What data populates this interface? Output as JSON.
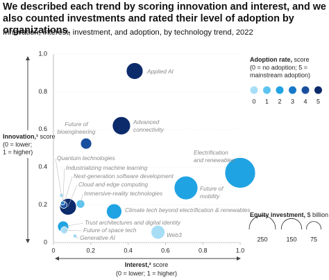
{
  "chart_data": {
    "type": "bubble",
    "title": "We described each trend by scoring innovation and interest, and we also counted investments and rated their level of adoption by organizations.",
    "subtitle": "Innovation, interest, investment, and adoption, by technology trend, 2022",
    "y_label": {
      "title": "Innovation,¹",
      "unit": "score",
      "note_lines": [
        "(0 = lower;",
        "1 = higher)"
      ]
    },
    "x_label": {
      "title": "Interest,²",
      "unit": "score",
      "note": "(0 = lower; 1 = higher)"
    },
    "xlim": [
      0,
      1
    ],
    "ylim": [
      0,
      1
    ],
    "xticks": [
      0,
      0.2,
      0.4,
      0.6,
      0.8,
      {
        "value": 1,
        "label": "1.0"
      }
    ],
    "yticks": [
      0,
      0.2,
      0.4,
      0.6,
      0.8,
      {
        "value": 1,
        "label": "1.0"
      }
    ],
    "points": [
      {
        "label": [
          "Applied AI"
        ],
        "x": 0.435,
        "y": 0.91,
        "investment": 100,
        "adoption": 5
      },
      {
        "label": [
          "Advanced",
          "connectivity"
        ],
        "x": 0.364,
        "y": 0.62,
        "investment": 117,
        "adoption": 5
      },
      {
        "label": [
          "Future of",
          "bioengineering"
        ],
        "x": 0.175,
        "y": 0.525,
        "investment": 44,
        "adoption": 4
      },
      {
        "label": [
          "Electrification",
          "and renewables"
        ],
        "x": 1.0,
        "y": 0.37,
        "investment": 336,
        "adoption": 2
      },
      {
        "label": [
          "Future of",
          "mobility"
        ],
        "x": 0.71,
        "y": 0.29,
        "investment": 200,
        "adoption": 2
      },
      {
        "label": [
          "Climate tech beyond electrification & renewables"
        ],
        "x": 0.325,
        "y": 0.165,
        "investment": 84,
        "adoption": 2
      },
      {
        "label": [
          "Web3"
        ],
        "x": 0.56,
        "y": 0.055,
        "investment": 69,
        "adoption": 0
      },
      {
        "label": [
          "Quantum technologies"
        ],
        "x": 0.043,
        "y": 0.25,
        "investment": 6,
        "adoption": 0
      },
      {
        "label": [
          "Industrializing machine learning"
        ],
        "x": 0.05,
        "y": 0.21,
        "investment": 6,
        "adoption": 3
      },
      {
        "label": [
          "Next-generation software development"
        ],
        "x": 0.055,
        "y": 0.2,
        "investment": 17,
        "adoption": 4
      },
      {
        "label": [
          "Cloud and edge computing"
        ],
        "x": 0.078,
        "y": 0.19,
        "investment": 100,
        "adoption": 5
      },
      {
        "label": [
          "Immersive-reality technologies"
        ],
        "x": 0.145,
        "y": 0.205,
        "investment": 25,
        "adoption": 1
      },
      {
        "label": [
          "Trust architectures and digital identity"
        ],
        "x": 0.052,
        "y": 0.085,
        "investment": 44,
        "adoption": 2
      },
      {
        "label": [
          "Future of space tech"
        ],
        "x": 0.058,
        "y": 0.065,
        "investment": 17,
        "adoption": 0
      },
      {
        "label": [
          "Generative AI"
        ],
        "x": 0.115,
        "y": 0.035,
        "investment": 6,
        "adoption": 0
      }
    ],
    "adoption_legend": {
      "title": "Adoption rate,",
      "unit": "score",
      "note_lines": [
        "(0 = no adoption; 5 =",
        "mainstream adoption)"
      ],
      "levels": [
        0,
        1,
        2,
        3,
        4,
        5
      ],
      "colors": [
        "#a8ddf6",
        "#5cc4ef",
        "#1fa3e3",
        "#1678c8",
        "#1a4f9e",
        "#0c2b6b"
      ]
    },
    "investment_legend": {
      "title": "Equity investment,",
      "unit": "$ billion",
      "values": [
        250,
        150,
        75
      ]
    }
  }
}
